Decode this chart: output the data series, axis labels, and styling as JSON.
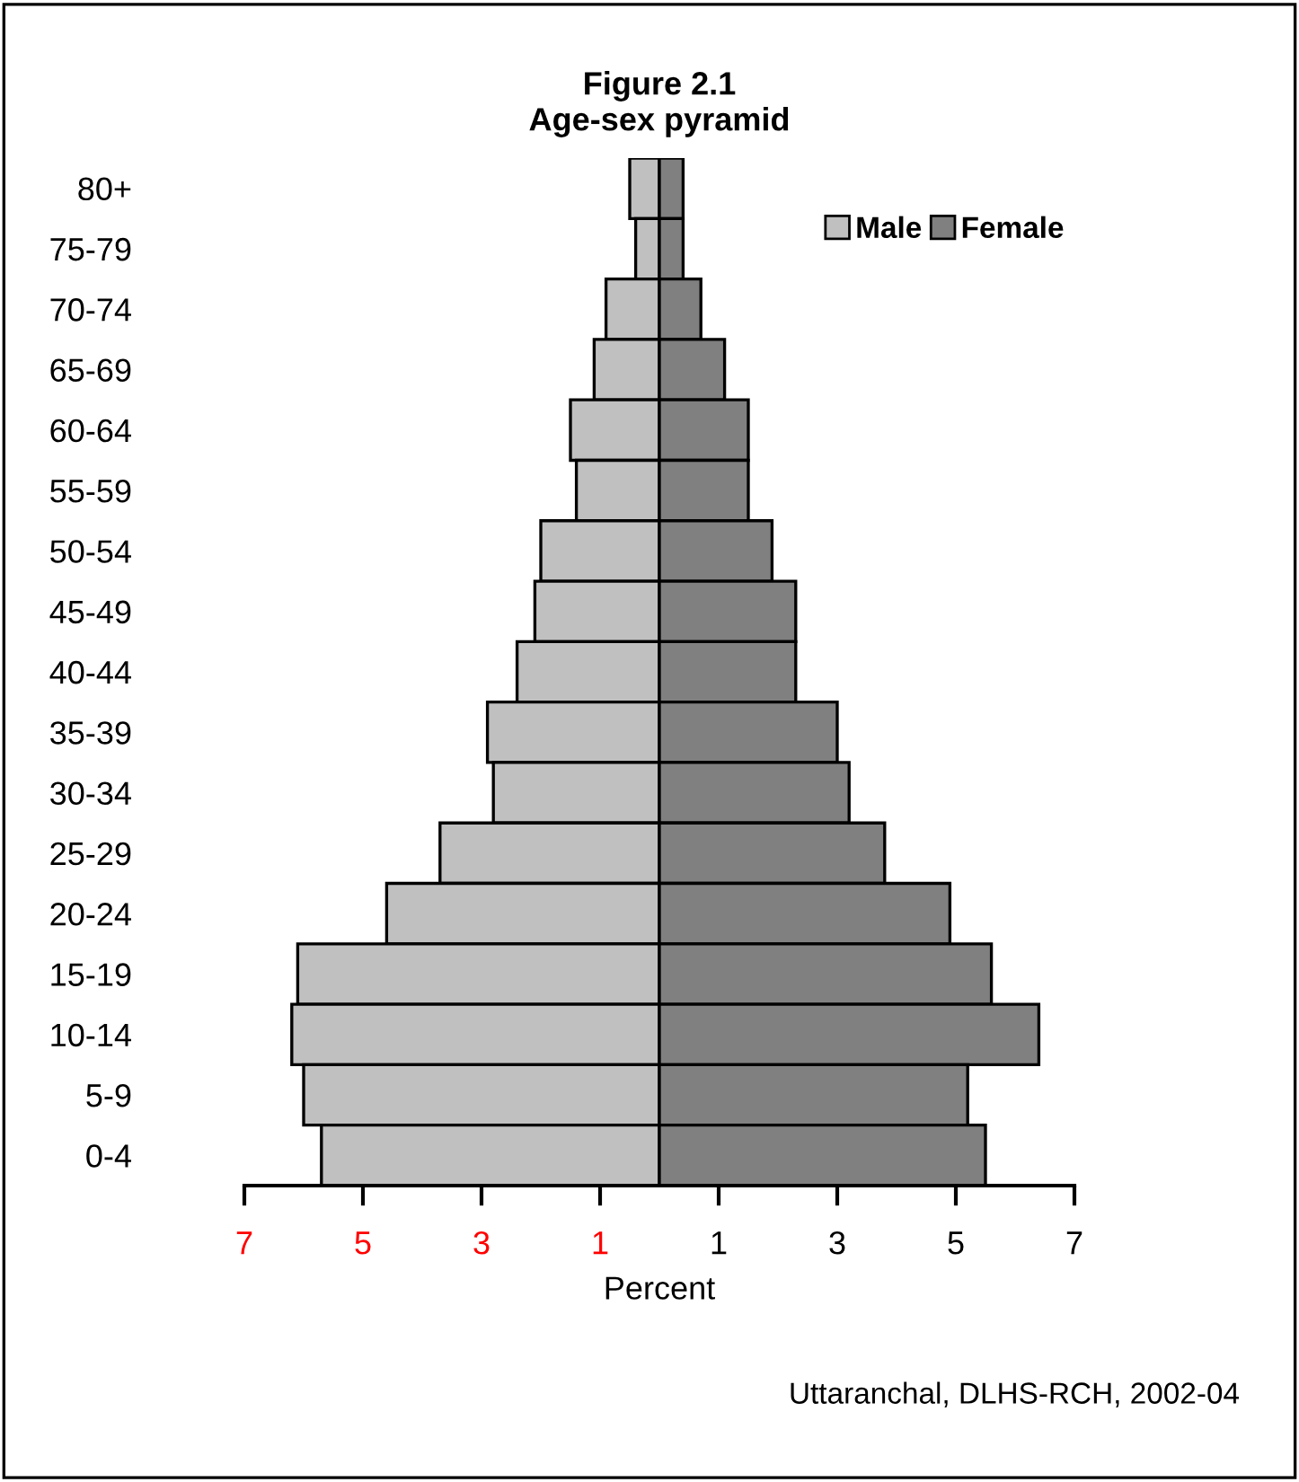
{
  "chart_data": {
    "type": "bar",
    "orientation": "horizontal",
    "stacked": true,
    "title": "Figure 2.1",
    "subtitle": "Age-sex pyramid",
    "xlabel": "Percent",
    "categories": [
      "80+",
      "75-79",
      "70-74",
      "65-69",
      "60-64",
      "55-59",
      "50-54",
      "45-49",
      "40-44",
      "35-39",
      "30-34",
      "25-29",
      "20-24",
      "15-19",
      "10-14",
      "5-9",
      "0-4"
    ],
    "series": [
      {
        "name": "Male",
        "color": "#c0c0c0",
        "values": [
          -0.5,
          -0.4,
          -0.9,
          -1.1,
          -1.5,
          -1.4,
          -2.0,
          -2.1,
          -2.4,
          -2.9,
          -2.8,
          -3.7,
          -4.6,
          -6.1,
          -6.2,
          -6.0,
          -5.7
        ]
      },
      {
        "name": "Female",
        "color": "#808080",
        "values": [
          0.4,
          0.4,
          0.7,
          1.1,
          1.5,
          1.5,
          1.9,
          2.3,
          2.3,
          3.0,
          3.2,
          3.8,
          4.9,
          5.6,
          6.4,
          5.2,
          5.5
        ]
      }
    ],
    "xlim": [
      -7,
      7
    ],
    "xticks": [
      {
        "value": -7,
        "label": "7"
      },
      {
        "value": -5,
        "label": "5"
      },
      {
        "value": -3,
        "label": "3"
      },
      {
        "value": -1,
        "label": "1"
      },
      1,
      3,
      5,
      7
    ],
    "annotations": [
      "Uttaranchal, DLHS-RCH, 2002-04"
    ],
    "legend": "top right",
    "grid": false
  }
}
